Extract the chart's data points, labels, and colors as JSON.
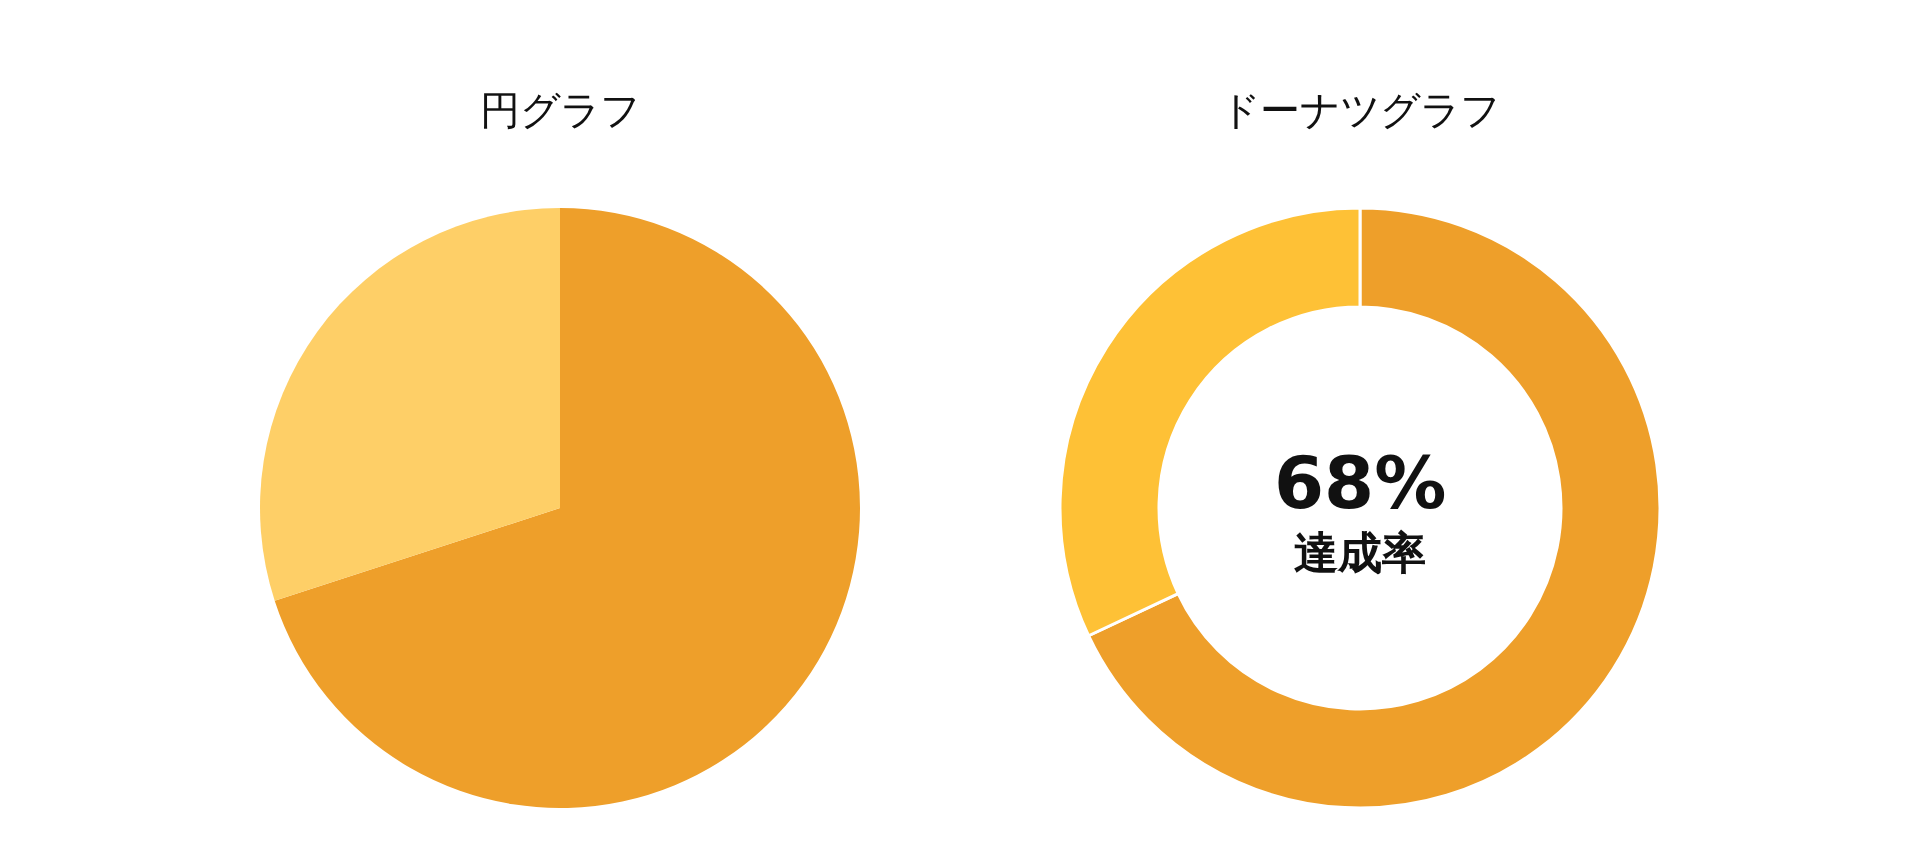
{
  "chart_data": [
    {
      "type": "pie",
      "title": "円グラフ",
      "categories": [
        null,
        null
      ],
      "values": [
        70,
        30
      ],
      "colors": [
        "#ee9f2a",
        "#fecf67"
      ]
    },
    {
      "type": "donut",
      "title": "ドーナツグラフ",
      "categories": [
        null,
        null
      ],
      "values": [
        68,
        32
      ],
      "colors": [
        "#ee9f2a",
        "#fec136"
      ],
      "annotations": [
        "68%",
        "達成率"
      ]
    }
  ]
}
